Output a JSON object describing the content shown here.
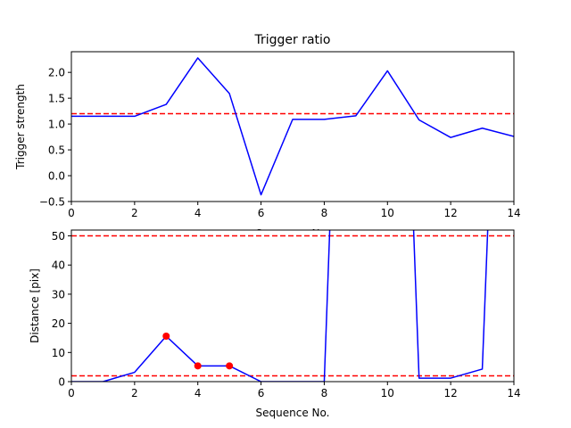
{
  "chart_data": [
    {
      "type": "line",
      "title": "Trigger ratio",
      "xlabel": "Sequence No.",
      "ylabel": "Trigger strength",
      "xlim": [
        0,
        14
      ],
      "ylim": [
        -0.5,
        2.4
      ],
      "xticks": [
        "0",
        "2",
        "4",
        "6",
        "8",
        "10",
        "12",
        "14"
      ],
      "yticks": [
        "−0.5",
        "0.0",
        "0.5",
        "1.0",
        "1.5",
        "2.0"
      ],
      "ytick_values": [
        -0.5,
        0.0,
        0.5,
        1.0,
        1.5,
        2.0
      ],
      "grid": false,
      "series": [
        {
          "color": "#0000ff",
          "x": [
            0,
            1,
            2,
            3,
            4,
            5,
            6,
            7,
            8,
            9,
            10,
            11,
            12,
            13,
            14
          ],
          "y": [
            1.15,
            1.15,
            1.15,
            1.38,
            2.28,
            1.59,
            -0.37,
            1.09,
            1.09,
            1.16,
            2.03,
            1.08,
            0.74,
            0.92,
            0.76
          ]
        }
      ],
      "reference_lines": [
        {
          "y": 1.2,
          "color": "#ff0000",
          "style": "dashed"
        }
      ]
    },
    {
      "type": "line",
      "title": "",
      "xlabel": "Sequence No.",
      "ylabel": "Distance [pix]",
      "xlim": [
        0,
        14
      ],
      "ylim": [
        0,
        52
      ],
      "xticks": [
        "0",
        "2",
        "4",
        "6",
        "8",
        "10",
        "12",
        "14"
      ],
      "yticks": [
        "0",
        "10",
        "20",
        "30",
        "40",
        "50"
      ],
      "ytick_values": [
        0,
        10,
        20,
        30,
        40,
        50
      ],
      "grid": false,
      "series": [
        {
          "color": "#0000ff",
          "x": [
            0,
            1,
            2,
            3,
            4,
            5,
            6,
            7,
            8,
            8.2,
            10.8,
            11,
            12,
            13,
            13.2
          ],
          "y": [
            0,
            0,
            3.2,
            15.6,
            5.4,
            5.4,
            0,
            0,
            0,
            60,
            60,
            1.2,
            1.2,
            4.3,
            60
          ]
        }
      ],
      "markers": {
        "color": "#ff0000",
        "x": [
          3,
          4,
          5
        ],
        "y": [
          15.6,
          5.4,
          5.4
        ]
      },
      "reference_lines": [
        {
          "y": 50,
          "color": "#ff0000",
          "style": "dashed"
        },
        {
          "y": 2,
          "color": "#ff0000",
          "style": "dashed"
        }
      ]
    }
  ]
}
